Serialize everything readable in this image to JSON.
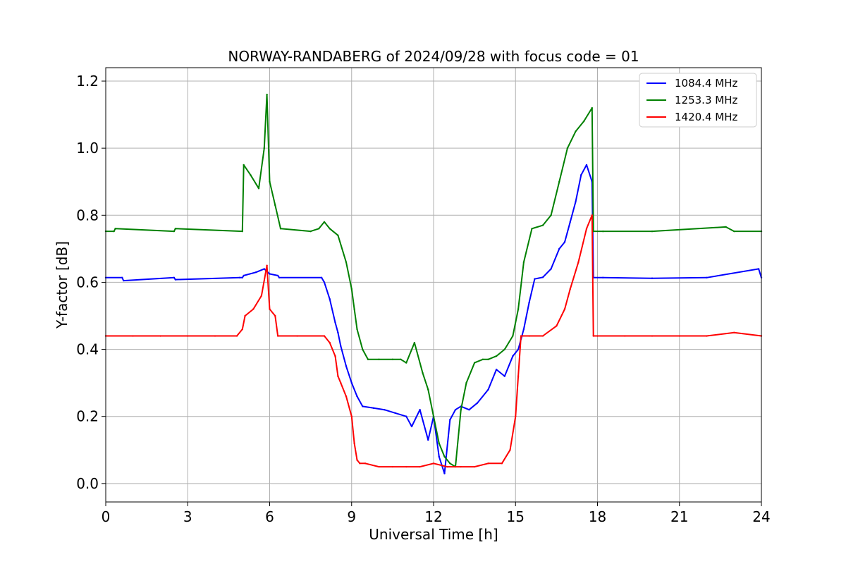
{
  "chart_data": {
    "type": "line",
    "title": "NORWAY-RANDABERG of 2024/09/28 with focus code = 01",
    "xlabel": "Universal Time [h]",
    "ylabel": "Y-factor [dB]",
    "xlim": [
      0,
      24
    ],
    "ylim": [
      -0.055,
      1.24
    ],
    "xticks": [
      0,
      3,
      6,
      9,
      12,
      15,
      18,
      21,
      24
    ],
    "yticks": [
      0.0,
      0.2,
      0.4,
      0.6,
      0.8,
      1.0,
      1.2
    ],
    "ytick_labels": [
      "0.0",
      "0.2",
      "0.4",
      "0.6",
      "0.8",
      "1.0",
      "1.2"
    ],
    "grid": true,
    "legend_position": "top-right",
    "series": [
      {
        "name": "1084.4 MHz",
        "color": "#0000ff",
        "x": [
          0,
          0.6,
          0.65,
          2.5,
          2.55,
          4.9,
          5.0,
          5.05,
          5.5,
          5.8,
          6.0,
          6.3,
          6.35,
          7.9,
          8.0,
          8.2,
          8.4,
          8.5,
          8.6,
          8.8,
          9.0,
          9.2,
          9.4,
          9.8,
          10.2,
          10.6,
          11.0,
          11.2,
          11.5,
          11.8,
          12.0,
          12.2,
          12.4,
          12.6,
          12.8,
          13.0,
          13.3,
          13.6,
          14.0,
          14.3,
          14.6,
          14.9,
          15.1,
          15.3,
          15.5,
          15.7,
          16.0,
          16.3,
          16.6,
          16.8,
          17.0,
          17.2,
          17.4,
          17.6,
          17.8,
          17.85,
          18.2,
          20.0,
          22.0,
          23.9,
          24.0
        ],
        "y": [
          0.614,
          0.614,
          0.605,
          0.614,
          0.608,
          0.614,
          0.614,
          0.62,
          0.63,
          0.64,
          0.625,
          0.62,
          0.614,
          0.614,
          0.6,
          0.55,
          0.48,
          0.45,
          0.41,
          0.35,
          0.3,
          0.26,
          0.23,
          0.225,
          0.22,
          0.21,
          0.2,
          0.17,
          0.22,
          0.13,
          0.2,
          0.08,
          0.03,
          0.19,
          0.22,
          0.23,
          0.22,
          0.24,
          0.28,
          0.34,
          0.32,
          0.38,
          0.4,
          0.46,
          0.54,
          0.61,
          0.615,
          0.64,
          0.7,
          0.72,
          0.78,
          0.84,
          0.92,
          0.95,
          0.9,
          0.614,
          0.614,
          0.612,
          0.614,
          0.64,
          0.614
        ]
      },
      {
        "name": "1253.3 MHz",
        "color": "#008000",
        "x": [
          0,
          0.3,
          0.35,
          2.5,
          2.55,
          5.0,
          5.05,
          5.3,
          5.6,
          5.8,
          5.9,
          6.0,
          6.2,
          6.4,
          7.5,
          7.8,
          8.0,
          8.2,
          8.5,
          8.8,
          9.0,
          9.1,
          9.2,
          9.4,
          9.6,
          10.0,
          10.5,
          10.8,
          11.0,
          11.3,
          11.6,
          11.8,
          12.0,
          12.2,
          12.4,
          12.6,
          12.8,
          13.0,
          13.2,
          13.5,
          13.8,
          14.0,
          14.3,
          14.6,
          14.9,
          15.1,
          15.3,
          15.6,
          16.0,
          16.3,
          16.6,
          16.9,
          17.2,
          17.5,
          17.8,
          17.85,
          18.2,
          20.0,
          22.7,
          23.0,
          24.0
        ],
        "y": [
          0.752,
          0.752,
          0.76,
          0.752,
          0.76,
          0.752,
          0.95,
          0.92,
          0.88,
          1.0,
          1.16,
          0.9,
          0.83,
          0.76,
          0.752,
          0.76,
          0.78,
          0.76,
          0.74,
          0.66,
          0.58,
          0.52,
          0.46,
          0.4,
          0.37,
          0.37,
          0.37,
          0.37,
          0.36,
          0.42,
          0.33,
          0.28,
          0.2,
          0.12,
          0.08,
          0.06,
          0.05,
          0.22,
          0.3,
          0.36,
          0.37,
          0.37,
          0.38,
          0.4,
          0.44,
          0.52,
          0.66,
          0.76,
          0.77,
          0.8,
          0.9,
          1.0,
          1.05,
          1.08,
          1.12,
          0.752,
          0.752,
          0.752,
          0.765,
          0.752,
          0.752
        ]
      },
      {
        "name": "1420.4 MHz",
        "color": "#ff0000",
        "x": [
          0,
          1.0,
          2.0,
          3.0,
          4.0,
          4.8,
          5.0,
          5.1,
          5.4,
          5.7,
          5.9,
          6.0,
          6.2,
          6.3,
          7.0,
          8.0,
          8.2,
          8.4,
          8.5,
          8.6,
          8.8,
          9.0,
          9.1,
          9.2,
          9.3,
          9.5,
          10.0,
          10.5,
          11.0,
          11.5,
          12.0,
          12.5,
          13.0,
          13.5,
          14.0,
          14.5,
          14.8,
          15.0,
          15.1,
          15.2,
          15.5,
          16.0,
          16.5,
          16.8,
          17.0,
          17.3,
          17.6,
          17.8,
          17.85,
          18.0,
          19.0,
          20.0,
          21.0,
          22.0,
          23.0,
          24.0
        ],
        "y": [
          0.44,
          0.44,
          0.44,
          0.44,
          0.44,
          0.44,
          0.46,
          0.5,
          0.52,
          0.56,
          0.65,
          0.52,
          0.5,
          0.44,
          0.44,
          0.44,
          0.42,
          0.38,
          0.32,
          0.3,
          0.26,
          0.2,
          0.12,
          0.07,
          0.06,
          0.06,
          0.05,
          0.05,
          0.05,
          0.05,
          0.06,
          0.05,
          0.05,
          0.05,
          0.06,
          0.06,
          0.1,
          0.2,
          0.32,
          0.44,
          0.44,
          0.44,
          0.47,
          0.52,
          0.58,
          0.66,
          0.76,
          0.8,
          0.44,
          0.44,
          0.44,
          0.44,
          0.44,
          0.44,
          0.45,
          0.44
        ]
      }
    ]
  }
}
